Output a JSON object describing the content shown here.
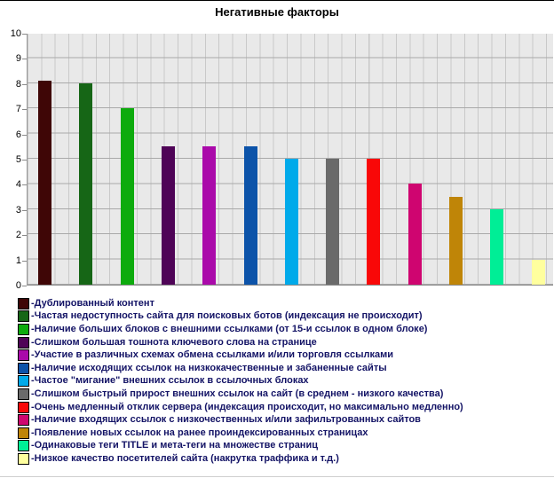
{
  "chart_data": {
    "type": "bar",
    "title": "Негативные факторы",
    "xlabel": "",
    "ylabel": "",
    "ylim": [
      0,
      10
    ],
    "ytick_step": 1,
    "yticks": [
      0,
      1,
      2,
      3,
      4,
      5,
      6,
      7,
      8,
      9,
      10
    ],
    "grid": true,
    "legend_position": "bottom",
    "legend_prefix": "-",
    "plot_bg_color": "#e9e9e9",
    "grid_color_horizontal": "#a9a9a9",
    "grid_color_vertical": "#c9c9c9",
    "series": [
      {
        "label": "Дублированный контент",
        "value": 8.1,
        "color": "#3f0606"
      },
      {
        "label": "Частая недоступность сайта для поисковых ботов (индексация не происходит)",
        "value": 8,
        "color": "#166616"
      },
      {
        "label": "Наличие больших блоков с внешними ссылками (от 15-и ссылок в одном блоке)",
        "value": 7,
        "color": "#0dab0d"
      },
      {
        "label": "Слишком большая тошнота ключевого слова на странице",
        "value": 5.5,
        "color": "#4f0457"
      },
      {
        "label": "Участие в различных схемах обмена ссылками и/или торговля ссылками",
        "value": 5.5,
        "color": "#aa0aaa"
      },
      {
        "label": "Наличие исходящих ссылок на низкокачественные и забаненные сайты",
        "value": 5.5,
        "color": "#0c53a9"
      },
      {
        "label": "Частое \"мигание\" внешних ссылок в ссылочных блоках",
        "value": 5,
        "color": "#00aaea"
      },
      {
        "label": "Слишком быстрый прирост внешних ссылок на сайт (в среднем - низкого качества)",
        "value": 5,
        "color": "#6a6a6a"
      },
      {
        "label": "Очень медленный отклик сервера (индексация происходит, но максимально медленно)",
        "value": 5,
        "color": "#f90808"
      },
      {
        "label": "Наличие входящих ссылок с низкочественных и/или зафильтрованных сайтов",
        "value": 4,
        "color": "#cf0570"
      },
      {
        "label": "Появление новых ссылок на ранее проиндексированных страницах",
        "value": 3.5,
        "color": "#bf8508"
      },
      {
        "label": "Одинаковые теги TITLE и мета-теги на множестве страниц",
        "value": 3,
        "color": "#00ee96"
      },
      {
        "label": "Низкое качество посетителей сайта (накрутка траффика и т.д.)",
        "value": 1,
        "color": "#ffff9e"
      }
    ]
  }
}
